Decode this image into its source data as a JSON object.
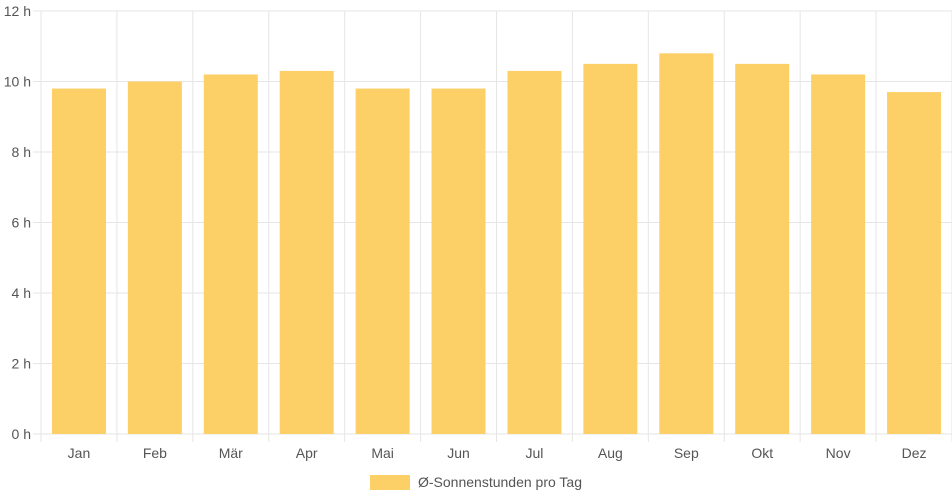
{
  "chart_data": {
    "type": "bar",
    "categories": [
      "Jan",
      "Feb",
      "Mär",
      "Apr",
      "Mai",
      "Jun",
      "Jul",
      "Aug",
      "Sep",
      "Okt",
      "Nov",
      "Dez"
    ],
    "series": [
      {
        "name": "Ø-Sonnenstunden pro Tag",
        "values": [
          9.8,
          10.0,
          10.2,
          10.3,
          9.8,
          9.8,
          10.3,
          10.5,
          10.8,
          10.5,
          10.2,
          9.7
        ]
      }
    ],
    "ylim": [
      0,
      12
    ],
    "y_ticks": [
      "0 h",
      "2 h",
      "4 h",
      "6 h",
      "8 h",
      "10 h",
      "12 h"
    ],
    "grid": true,
    "legend_position": "bottom-center",
    "colors": {
      "bar": "#fdd067",
      "grid": "#e6e6e6",
      "text": "#555555"
    }
  }
}
